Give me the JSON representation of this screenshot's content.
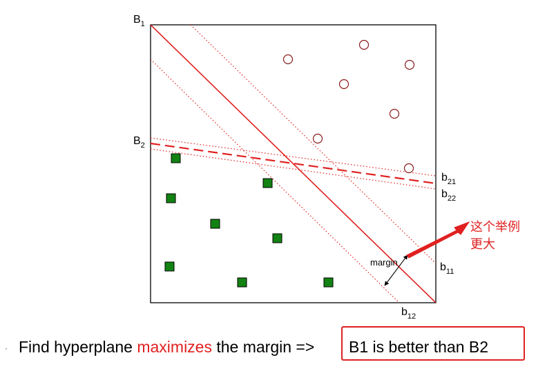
{
  "labels": {
    "B1": {
      "main": "B",
      "sub": "1"
    },
    "B2": {
      "main": "B",
      "sub": "2"
    },
    "b21": {
      "main": "b",
      "sub": "21"
    },
    "b22": {
      "main": "b",
      "sub": "22"
    },
    "b11": {
      "main": "b",
      "sub": "11"
    },
    "b12": {
      "main": "b",
      "sub": "12"
    },
    "margin": "margin"
  },
  "annotation": {
    "line1": "这个举例",
    "line2": "更大"
  },
  "caption": {
    "bullet": "·",
    "before": "Find hyperplane ",
    "highlight": "maximizes",
    "after": " the margin =>",
    "boxed": "B1 is better than B2"
  },
  "colors": {
    "accent": "#e02020",
    "square": "#128212",
    "circle": "#8b1a1a"
  }
}
